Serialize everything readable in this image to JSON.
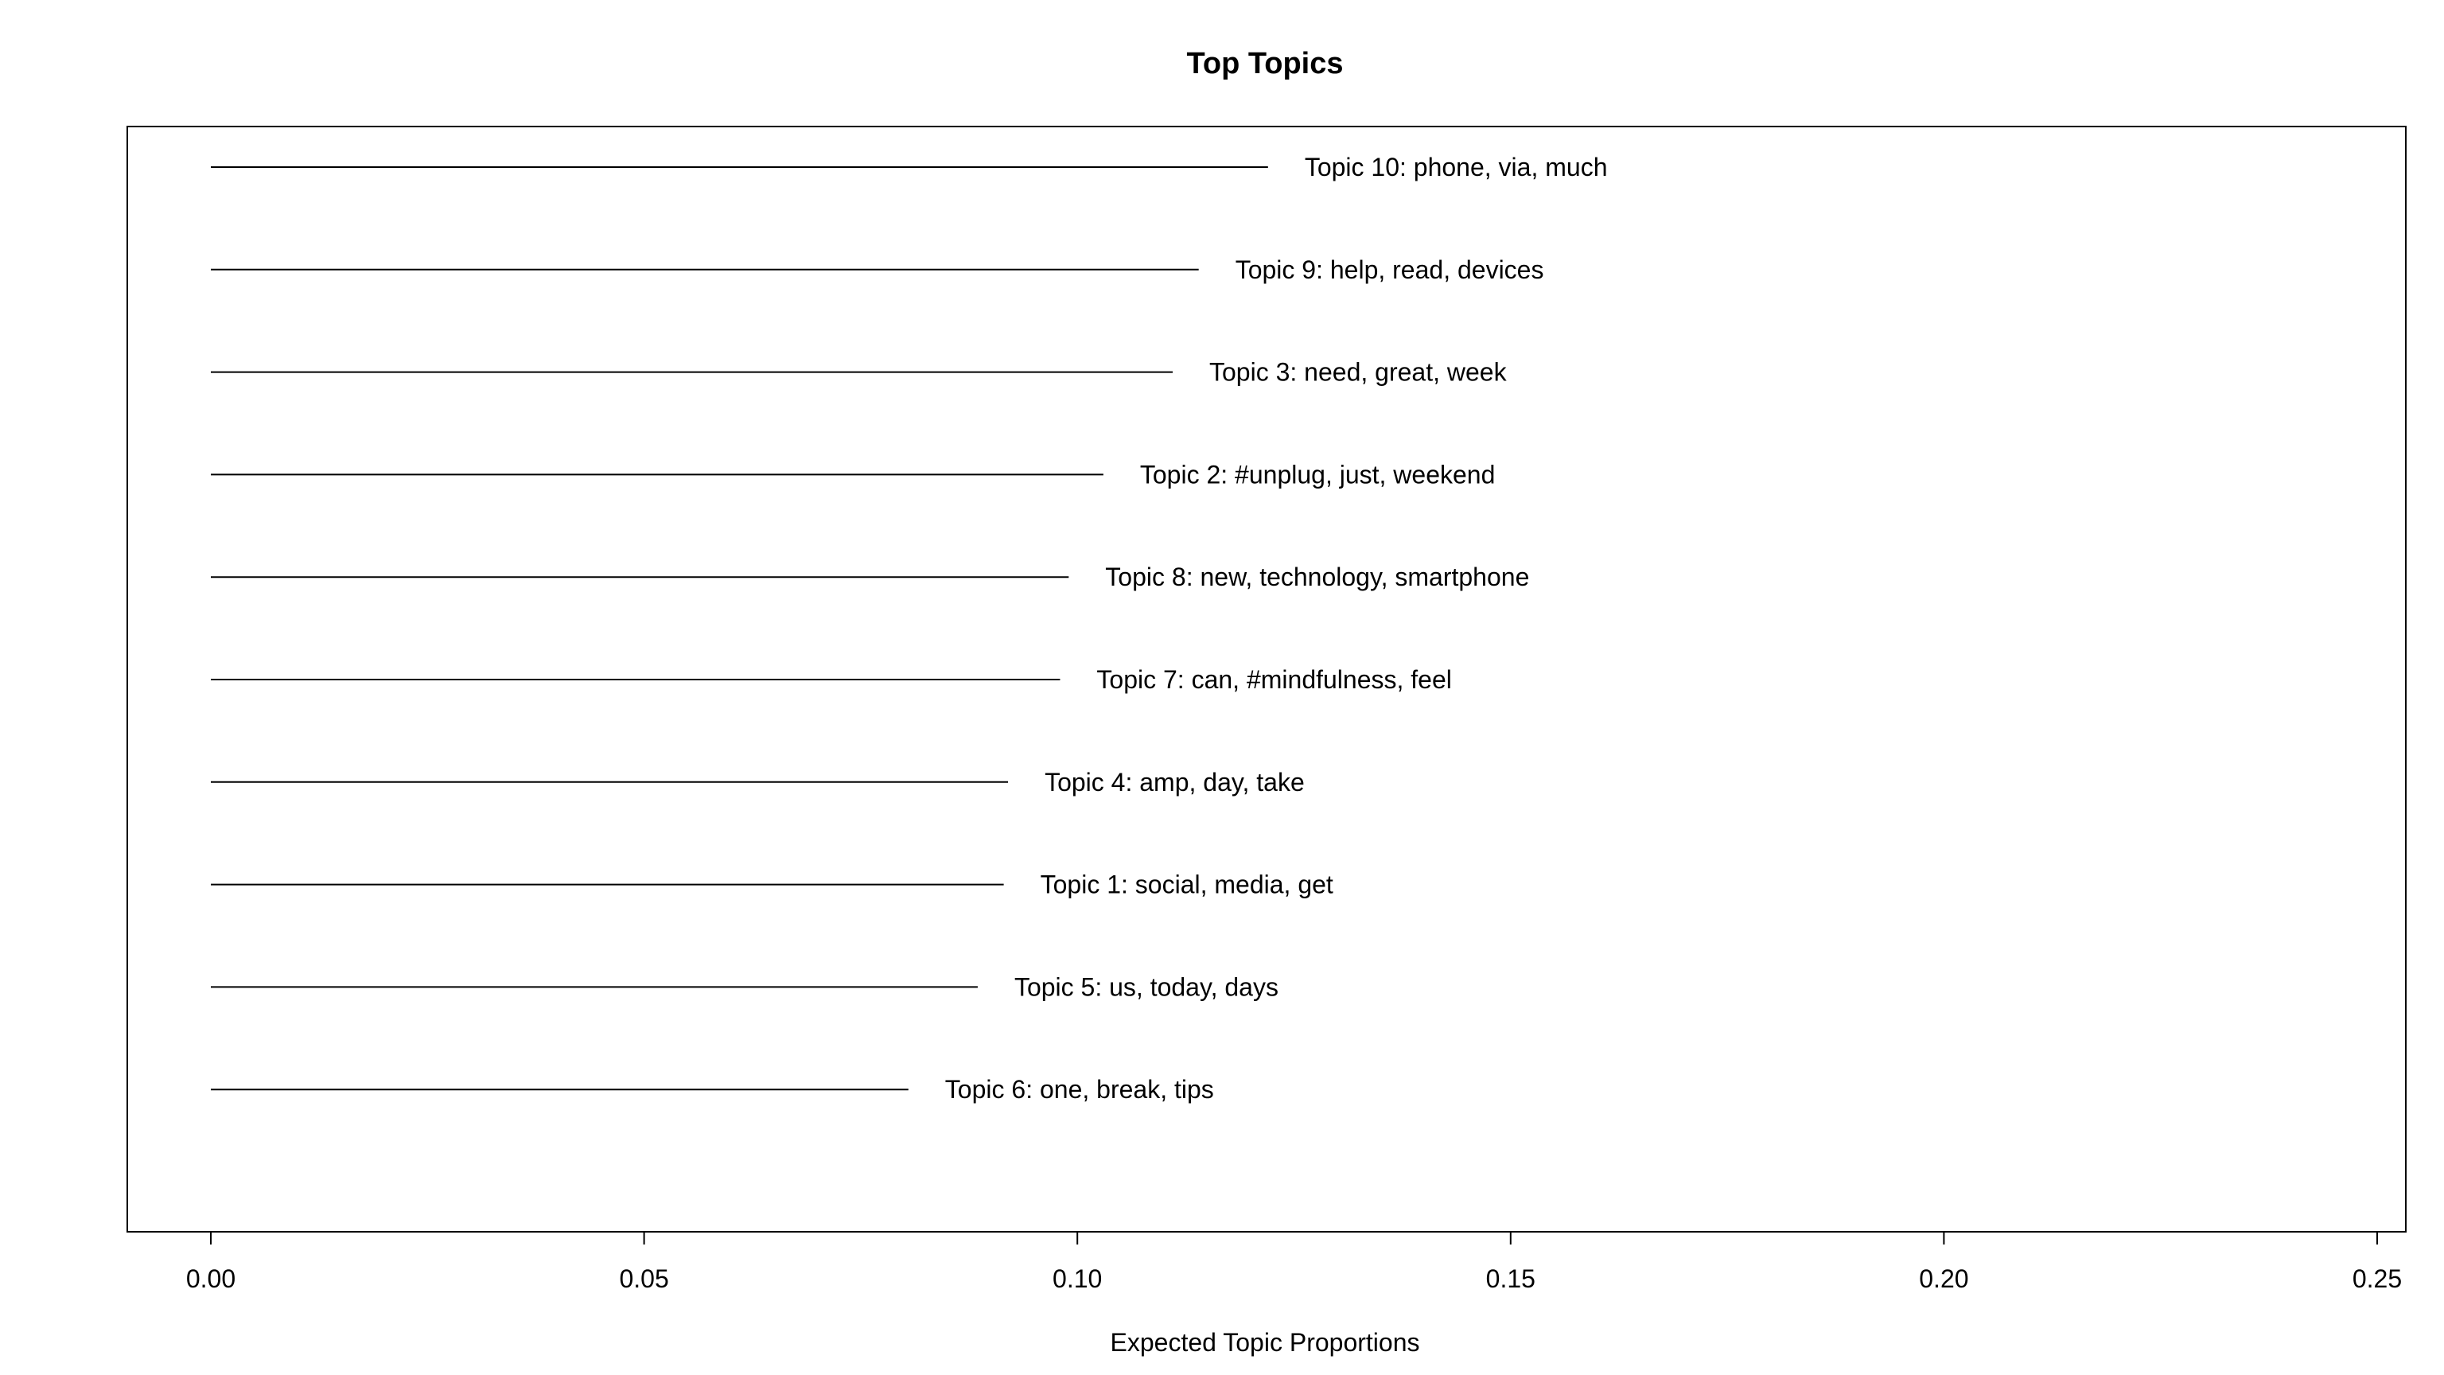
{
  "chart_data": {
    "type": "bar",
    "orientation": "horizontal",
    "title": "Top Topics",
    "xlabel": "Expected Topic Proportions",
    "ylabel": "",
    "xlim": [
      0,
      0.25
    ],
    "xticks": [
      "0.00",
      "0.05",
      "0.10",
      "0.15",
      "0.20",
      "0.25"
    ],
    "grid": false,
    "line_color": "#000000",
    "topics": [
      {
        "label": "Topic 10: phone, via, much",
        "value": 0.122
      },
      {
        "label": "Topic 9: help, read, devices",
        "value": 0.114
      },
      {
        "label": "Topic 3: need, great, week",
        "value": 0.111
      },
      {
        "label": "Topic 2: #unplug, just, weekend",
        "value": 0.103
      },
      {
        "label": "Topic 8: new, technology, smartphone",
        "value": 0.099
      },
      {
        "label": "Topic 7: can, #mindfulness, feel",
        "value": 0.098
      },
      {
        "label": "Topic 4: amp, day, take",
        "value": 0.092
      },
      {
        "label": "Topic 1: social, media, get",
        "value": 0.0915
      },
      {
        "label": "Topic 5: us, today, days",
        "value": 0.0885
      },
      {
        "label": "Topic 6: one, break, tips",
        "value": 0.0805
      }
    ]
  }
}
